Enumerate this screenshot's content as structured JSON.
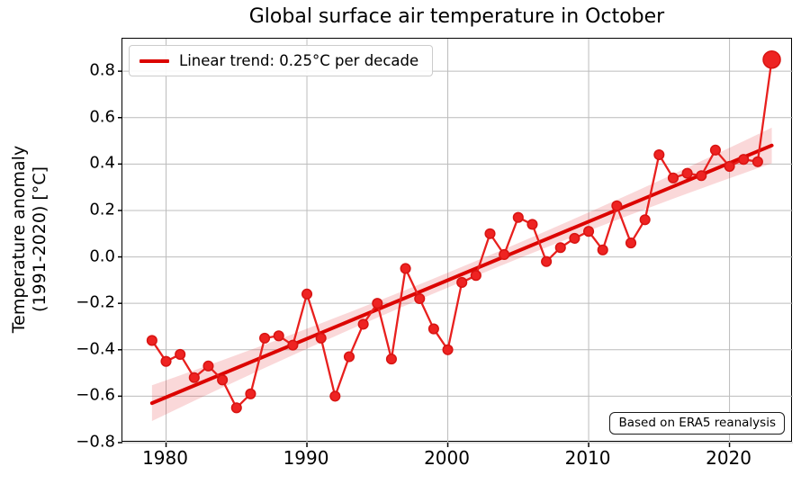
{
  "title": "Global surface air temperature in October",
  "y_axis": {
    "label_line1": "Temperature anomaly",
    "label_line2": "(1991-2020) [°C]"
  },
  "legend": {
    "label": "Linear trend: 0.25°C per decade"
  },
  "annotation": {
    "text": "Based on ERA5 reanalysis"
  },
  "colors": {
    "series": "#e8201e",
    "marker_fill": "#ee2322",
    "marker_edge": "#d81412",
    "trend": "#dc0400",
    "band": "rgba(228,26,28,0.17)",
    "grid": "#bcbcbc",
    "spine": "#000000",
    "text": "#000000"
  },
  "chart_data": {
    "type": "line",
    "title": "Global surface air temperature in October",
    "xlabel": "",
    "ylabel": "Temperature anomaly (1991-2020) [°C]",
    "x": [
      1979,
      1980,
      1981,
      1982,
      1983,
      1984,
      1985,
      1986,
      1987,
      1988,
      1989,
      1990,
      1991,
      1992,
      1993,
      1994,
      1995,
      1996,
      1997,
      1998,
      1999,
      2000,
      2001,
      2002,
      2003,
      2004,
      2005,
      2006,
      2007,
      2008,
      2009,
      2010,
      2011,
      2012,
      2013,
      2014,
      2015,
      2016,
      2017,
      2018,
      2019,
      2020,
      2021,
      2022,
      2023
    ],
    "values": [
      -0.36,
      -0.45,
      -0.42,
      -0.52,
      -0.47,
      -0.53,
      -0.65,
      -0.59,
      -0.35,
      -0.34,
      -0.38,
      -0.16,
      -0.35,
      -0.6,
      -0.43,
      -0.29,
      -0.2,
      -0.44,
      -0.05,
      -0.18,
      -0.31,
      -0.4,
      -0.11,
      -0.08,
      0.1,
      0.01,
      0.17,
      0.14,
      -0.02,
      0.04,
      0.08,
      0.11,
      0.03,
      0.22,
      0.06,
      0.16,
      0.44,
      0.34,
      0.36,
      0.35,
      0.46,
      0.39,
      0.42,
      0.41,
      0.85
    ],
    "highlight_last_point": true,
    "trend": {
      "label": "Linear trend: 0.25°C per decade",
      "rate_c_per_decade": 0.25,
      "start_year": 1979,
      "start_value": -0.63,
      "end_year": 2023,
      "end_value": 0.48
    },
    "confidence_band": {
      "halfwidth_mid": 0.032,
      "halfwidth_ends": 0.077,
      "center_year": 2001
    },
    "xlim": [
      1976.9,
      2024.5
    ],
    "ylim": [
      -0.8,
      0.94
    ],
    "xticks": {
      "values": [
        1980,
        1990,
        2000,
        2010,
        2020
      ],
      "labels": [
        "1980",
        "1990",
        "2000",
        "2010",
        "2020"
      ]
    },
    "yticks": {
      "values": [
        0.8,
        0.6,
        0.4,
        0.2,
        0.0,
        -0.2,
        -0.4,
        -0.6,
        -0.8
      ],
      "labels": [
        "0.8",
        "0.6",
        "0.4",
        "0.2",
        "0.0",
        "−0.2",
        "−0.4",
        "−0.6",
        "−0.8"
      ]
    },
    "grid": true,
    "legend_position": "upper left",
    "annotation": "Based on ERA5 reanalysis"
  }
}
